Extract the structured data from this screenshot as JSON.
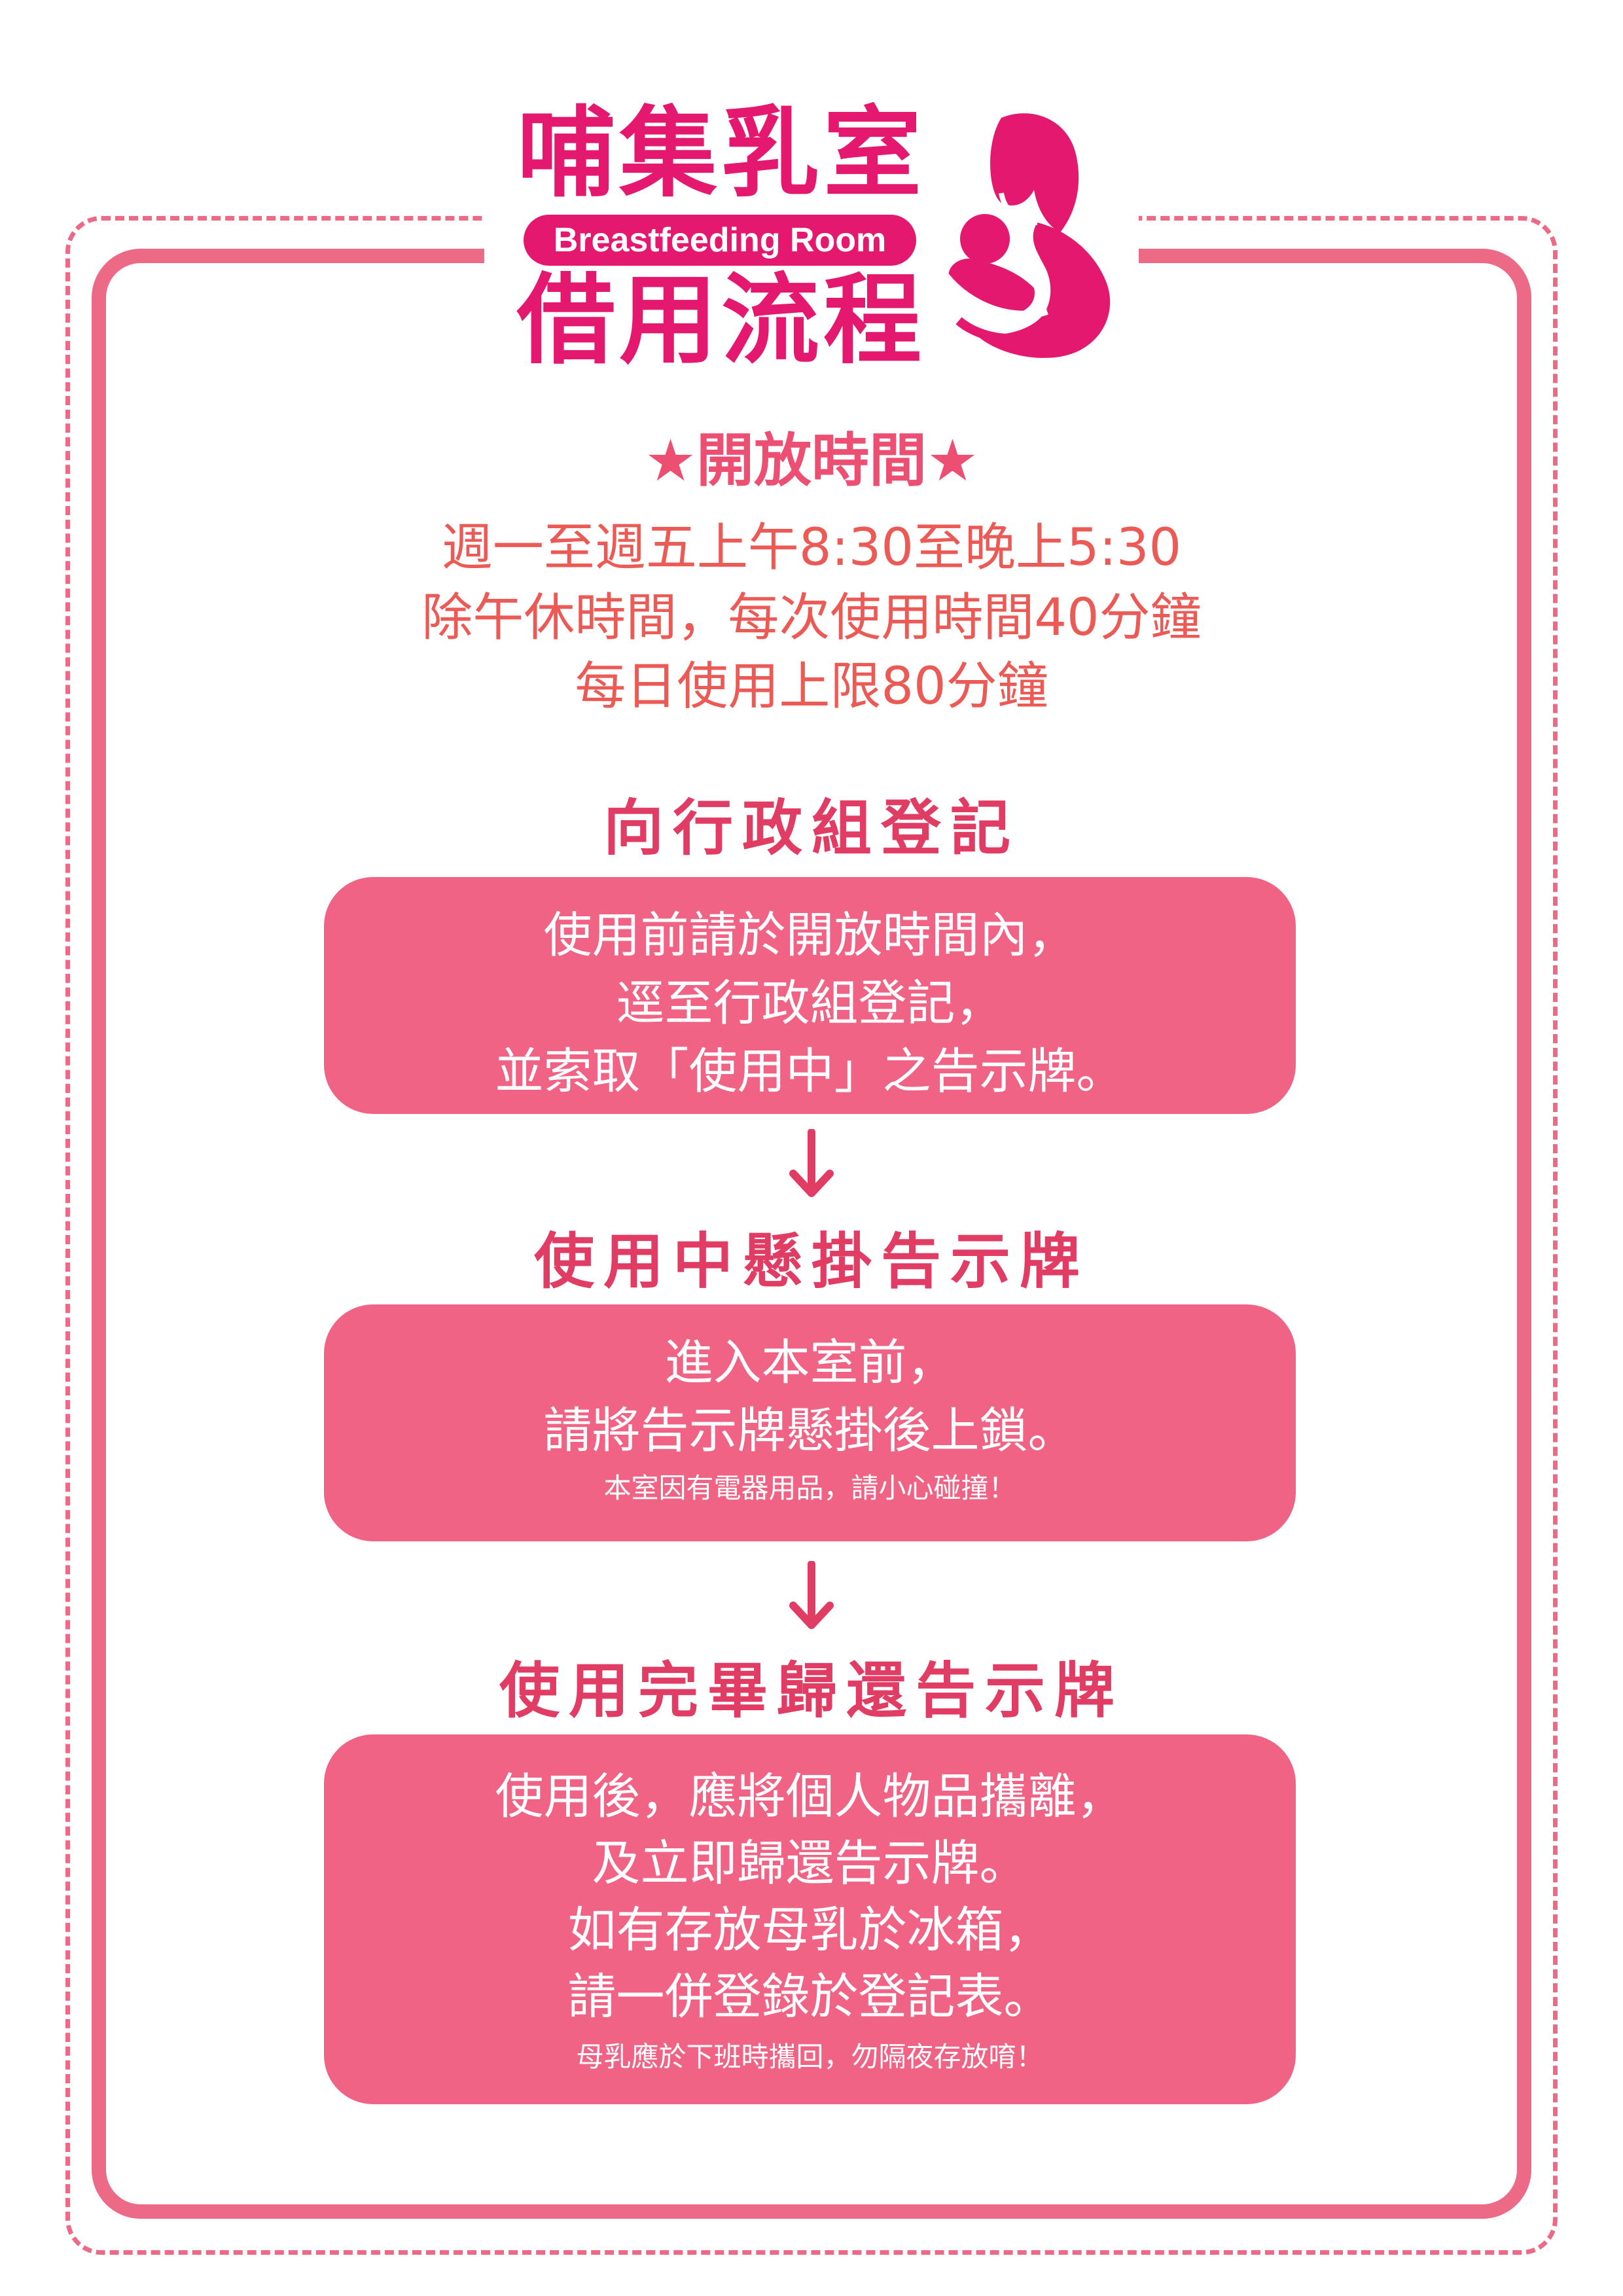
{
  "header": {
    "title": "哺集乳室",
    "title_en": "Breastfeeding Room",
    "subtitle": "借用流程",
    "logo_icon": "mother-holding-baby-icon"
  },
  "hours": {
    "heading": "★開放時間★",
    "lines": [
      "週一至週五上午8:30至晚上5:30",
      "除午休時間，每次使用時間40分鐘",
      "每日使用上限80分鐘"
    ]
  },
  "steps": [
    {
      "heading": "向行政組登記",
      "lines": [
        "使用前請於開放時間內，",
        "逕至行政組登記，",
        "並索取「使用中」之告示牌。"
      ],
      "note": ""
    },
    {
      "heading": "使用中懸掛告示牌",
      "lines": [
        "進入本室前，",
        "請將告示牌懸掛後上鎖。"
      ],
      "note": "本室因有電器用品，請小心碰撞！"
    },
    {
      "heading": "使用完畢歸還告示牌",
      "lines": [
        "使用後，應將個人物品攜離，",
        "及立即歸還告示牌。",
        "如有存放母乳於冰箱，",
        "請一併登錄於登記表。"
      ],
      "note": "母乳應於下班時攜回，勿隔夜存放唷！"
    }
  ],
  "colors": {
    "brand_magenta": "#e4186e",
    "frame_pink": "#ec6a86",
    "box_pink": "#f06384",
    "heading_pink": "#e03c64",
    "hours_text": "#ec5a55"
  },
  "icons": {
    "arrow": "arrow-down-icon"
  }
}
